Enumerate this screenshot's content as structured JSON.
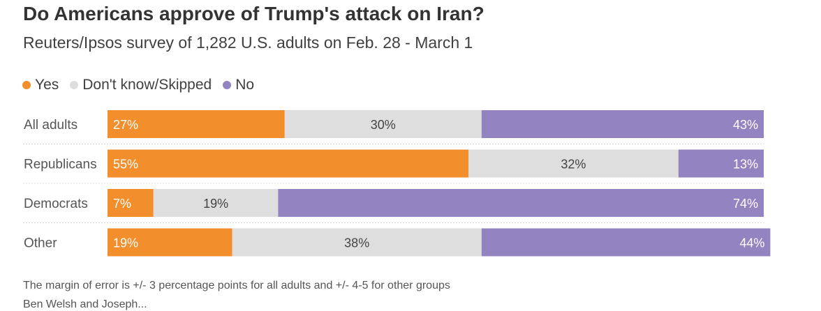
{
  "chart_data": {
    "type": "bar",
    "orientation": "horizontal",
    "stacked": true,
    "title": "Do Americans approve of Trump's attack on Iran?",
    "subtitle": "Reuters/Ipsos survey of 1,282 U.S. adults on Feb. 28 - March 1",
    "categories": [
      "All adults",
      "Republicans",
      "Democrats",
      "Other"
    ],
    "series": [
      {
        "name": "Yes",
        "color": "#f28e2b",
        "values": [
          27,
          55,
          7,
          19
        ]
      },
      {
        "name": "Don't know/Skipped",
        "color": "#dedede",
        "values": [
          30,
          32,
          19,
          38
        ]
      },
      {
        "name": "No",
        "color": "#9483c1",
        "values": [
          43,
          13,
          74,
          44
        ]
      }
    ],
    "value_suffix": "%",
    "xlim": [
      0,
      100
    ],
    "legend_position": "top-left",
    "note": "The margin of error is +/- 3 percentage points for all adults and +/- 4-5 for other groups",
    "byline": "Ben Welsh and Joseph..."
  }
}
